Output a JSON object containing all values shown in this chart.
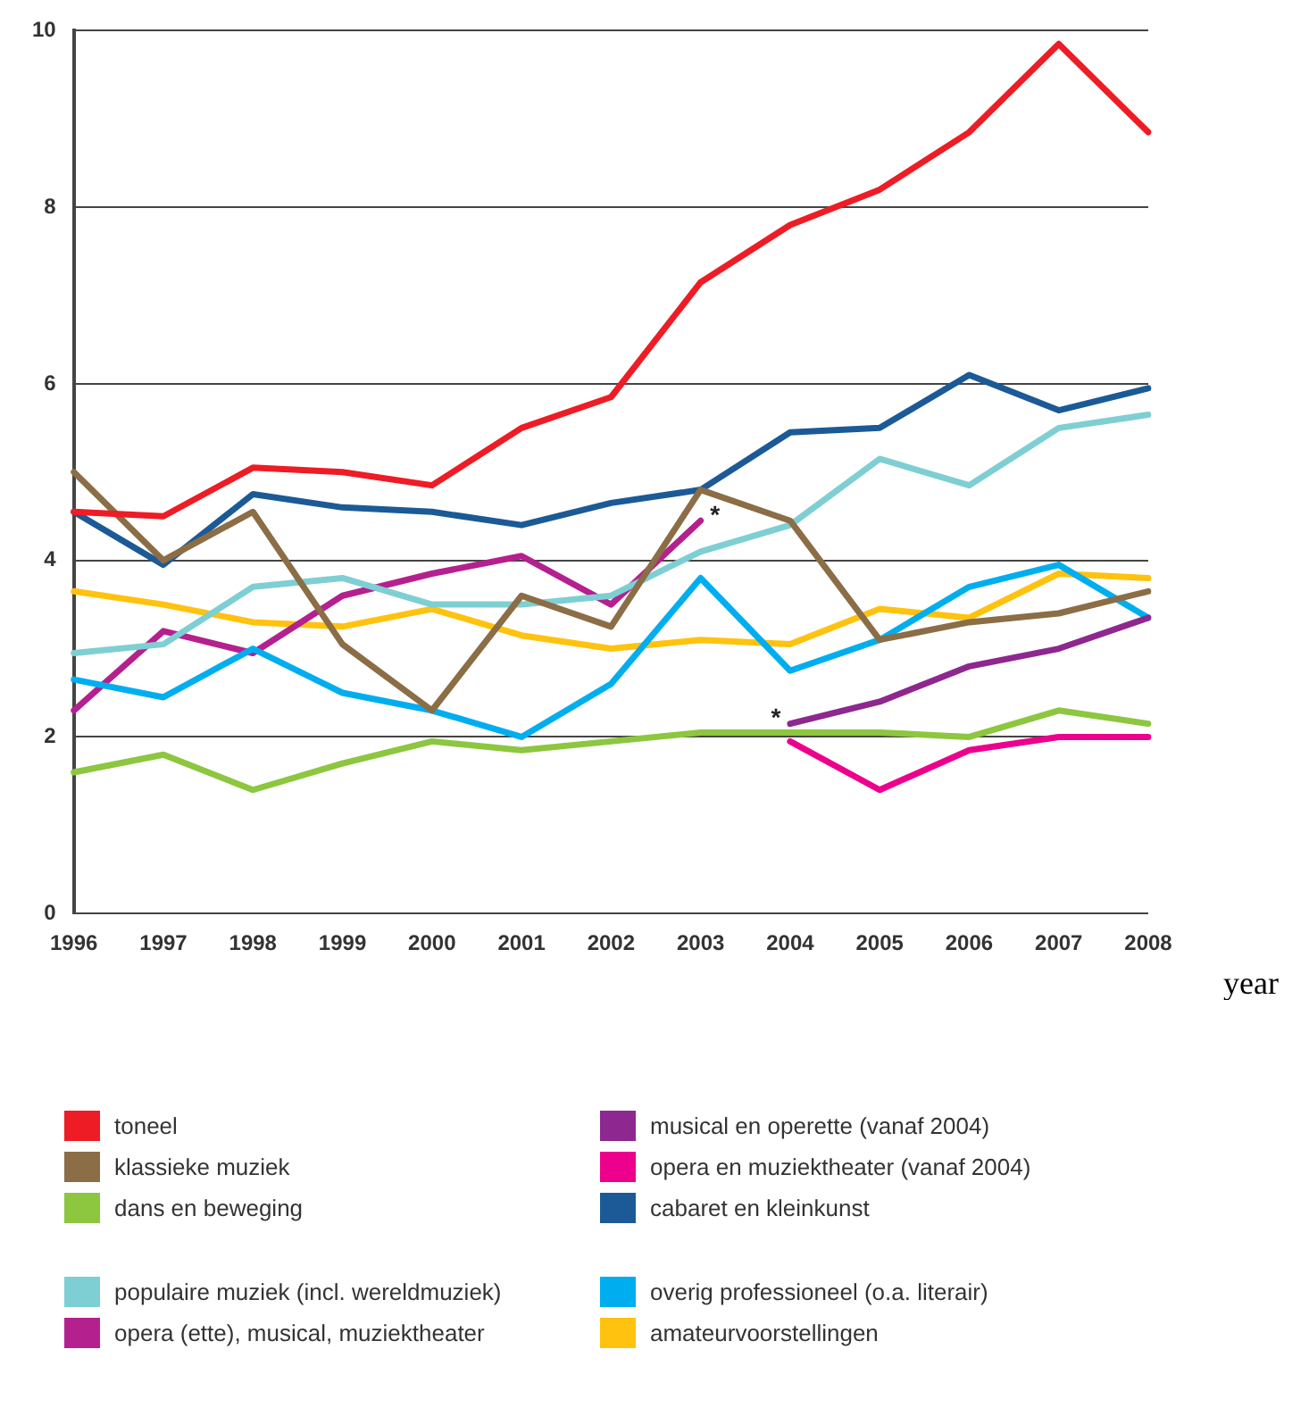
{
  "chart_data": {
    "type": "line",
    "xlabel": "year",
    "categories": [
      "1996",
      "1997",
      "1998",
      "1999",
      "2000",
      "2001",
      "2002",
      "2003",
      "2004",
      "2005",
      "2006",
      "2007",
      "2008"
    ],
    "ylim": [
      0,
      10
    ],
    "yticks": [
      0,
      2,
      4,
      6,
      8,
      10
    ],
    "grid": "y",
    "legend": "bottom",
    "marker": "none",
    "line_style": "solid",
    "series": [
      {
        "name": "toneel",
        "color": "#ee1c25",
        "values": [
          4.55,
          4.5,
          5.05,
          5.0,
          4.85,
          5.5,
          5.85,
          7.15,
          7.8,
          8.2,
          8.85,
          9.85,
          8.85
        ]
      },
      {
        "name": "musical en operette (vanaf 2004)",
        "color": "#8e278f",
        "values": [
          null,
          null,
          null,
          null,
          null,
          null,
          null,
          null,
          2.15,
          2.4,
          2.8,
          3.0,
          3.35
        ]
      },
      {
        "name": "klassieke muziek",
        "color": "#8b6d46",
        "values": [
          5.0,
          4.0,
          4.55,
          3.05,
          2.3,
          3.6,
          3.25,
          4.8,
          4.45,
          3.1,
          3.3,
          3.4,
          3.65
        ]
      },
      {
        "name": "opera en muziektheater (vanaf 2004)",
        "color": "#ec008c",
        "values": [
          null,
          null,
          null,
          null,
          null,
          null,
          null,
          null,
          1.95,
          1.4,
          1.85,
          2.0,
          2.0
        ]
      },
      {
        "name": "dans en beweging",
        "color": "#8dc63f",
        "values": [
          1.6,
          1.8,
          1.4,
          1.7,
          1.95,
          1.85,
          1.95,
          2.05,
          2.05,
          2.05,
          2.0,
          2.3,
          2.15
        ]
      },
      {
        "name": "cabaret en kleinkunst",
        "color": "#1b5a96",
        "values": [
          4.55,
          3.95,
          4.75,
          4.6,
          4.55,
          4.4,
          4.65,
          4.8,
          5.45,
          5.5,
          6.1,
          5.7,
          5.95
        ]
      },
      {
        "name": "populaire muziek (incl. wereldmuziek)",
        "color": "#7ecfd3",
        "values": [
          2.95,
          3.05,
          3.7,
          3.8,
          3.5,
          3.5,
          3.6,
          4.1,
          4.4,
          5.15,
          4.85,
          5.5,
          5.65
        ]
      },
      {
        "name": "overig professioneel (o.a. literair)",
        "color": "#00aeef",
        "values": [
          2.65,
          2.45,
          3.0,
          2.5,
          2.3,
          2.0,
          2.6,
          3.8,
          2.75,
          3.1,
          3.7,
          3.95,
          3.35
        ]
      },
      {
        "name": "opera (ette), musical, muziektheater",
        "color": "#b5208f",
        "values": [
          2.3,
          3.2,
          2.95,
          3.6,
          3.85,
          4.05,
          3.5,
          4.45,
          null,
          null,
          null,
          null,
          null
        ]
      },
      {
        "name": "amateurvoorstellingen",
        "color": "#ffc20e",
        "values": [
          3.65,
          3.5,
          3.3,
          3.25,
          3.45,
          3.15,
          3.0,
          3.1,
          3.05,
          3.45,
          3.35,
          3.85,
          3.8
        ]
      }
    ],
    "annotations": [
      {
        "text": "*",
        "x": "2003",
        "y": 4.5
      },
      {
        "text": "*",
        "x": "2004",
        "y": 2.2
      }
    ]
  }
}
